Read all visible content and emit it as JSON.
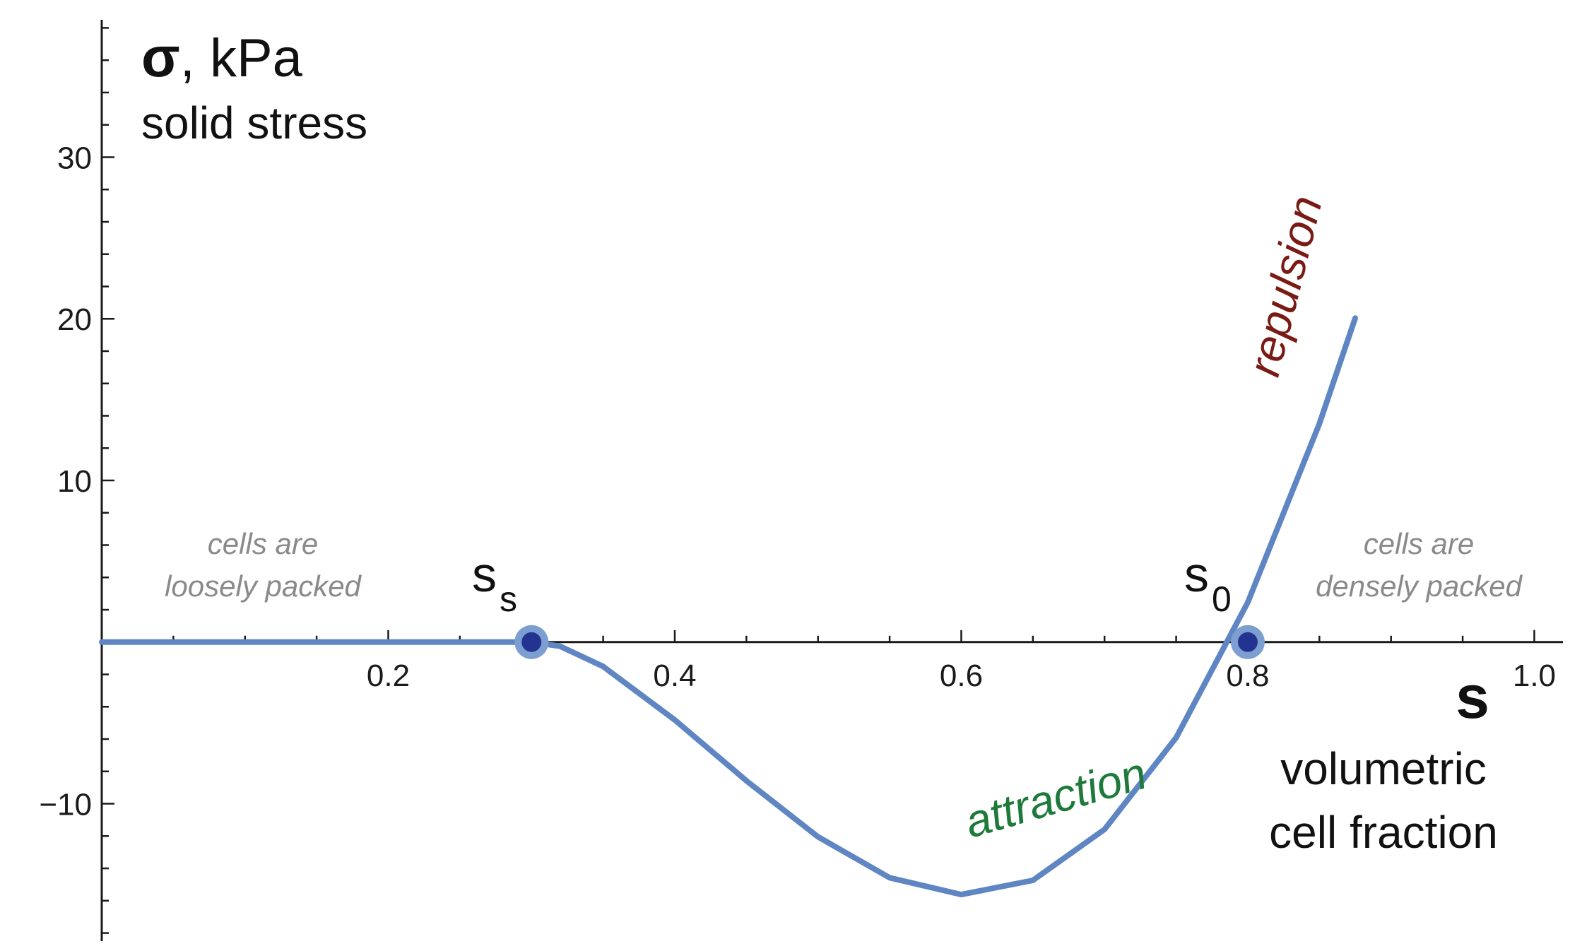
{
  "chart_data": {
    "type": "line",
    "xlim": [
      0.0,
      1.02
    ],
    "ylim": [
      -18.5,
      38.5
    ],
    "x_ticks": [
      0.2,
      0.4,
      0.6,
      0.8,
      1.0
    ],
    "x_tick_labels": [
      "0.2",
      "0.4",
      "0.6",
      "0.8",
      "1.0"
    ],
    "y_ticks": [
      -10,
      10,
      20,
      30
    ],
    "y_tick_labels": [
      "−10",
      "10",
      "20",
      "30"
    ],
    "grid": false,
    "ylabel": {
      "symbol": "σ",
      "unit": ", kPa",
      "description": "solid stress"
    },
    "xlabel": {
      "symbol": "s",
      "description_line1": "volumetric",
      "description_line2": "cell fraction"
    },
    "series": [
      {
        "x": [
          0.0,
          0.1,
          0.2,
          0.3,
          0.32,
          0.35,
          0.4,
          0.45,
          0.5,
          0.55,
          0.6,
          0.65,
          0.7,
          0.75,
          0.8,
          0.85,
          0.875
        ],
        "y": [
          0,
          0,
          0,
          0,
          -0.26,
          -1.51,
          -4.82,
          -8.58,
          -12.05,
          -14.58,
          -15.62,
          -14.74,
          -11.59,
          -5.91,
          2.46,
          13.51,
          20.04
        ]
      }
    ],
    "points": [
      {
        "x": 0.3,
        "y": 0,
        "label": "s",
        "sub": "s"
      },
      {
        "x": 0.8,
        "y": 0,
        "label": "s",
        "sub": "0"
      }
    ],
    "annotations": {
      "left_note": [
        "cells are",
        "loosely packed"
      ],
      "right_note": [
        "cells are",
        "densely packed"
      ],
      "attraction": "attraction",
      "repulsion": "repulsion"
    },
    "colors": {
      "curve": "#5f86c2",
      "point_outer": "#7c9ed0",
      "point_inner": "#22348f",
      "attraction": "#1e7a3a",
      "repulsion": "#7a1a14",
      "note": "#8a8a8a"
    }
  }
}
